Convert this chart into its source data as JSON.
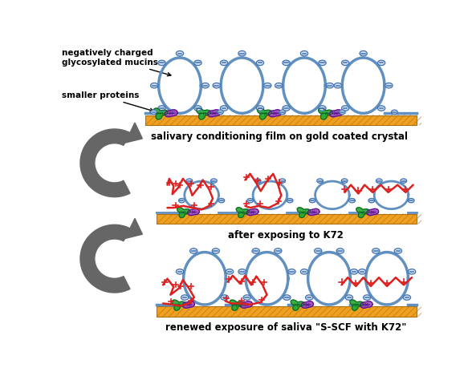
{
  "background_color": "#ffffff",
  "title_fontsize": 8.5,
  "mucin_stroke": "#6090c0",
  "mucin_fill": "#b8d0e8",
  "protein_green": "#22aa33",
  "protein_purple": "#9940bb",
  "surface_orange": "#f0a020",
  "surface_stripe": "#d08010",
  "sup_red": "#dd2020",
  "minus_fill": "#d0e0f8",
  "minus_stroke": "#4070b0",
  "plus_color": "#dd2020",
  "arrow_color": "#666666",
  "text_color": "#000000",
  "label1": "salivary conditioning film on gold coated crystal",
  "label2": "after exposing to K72",
  "label3": "renewed exposure of saliva \"S-SCF with K72\"",
  "annot1": "negatively charged\nglycosylated mucins",
  "annot2": "smaller proteins"
}
